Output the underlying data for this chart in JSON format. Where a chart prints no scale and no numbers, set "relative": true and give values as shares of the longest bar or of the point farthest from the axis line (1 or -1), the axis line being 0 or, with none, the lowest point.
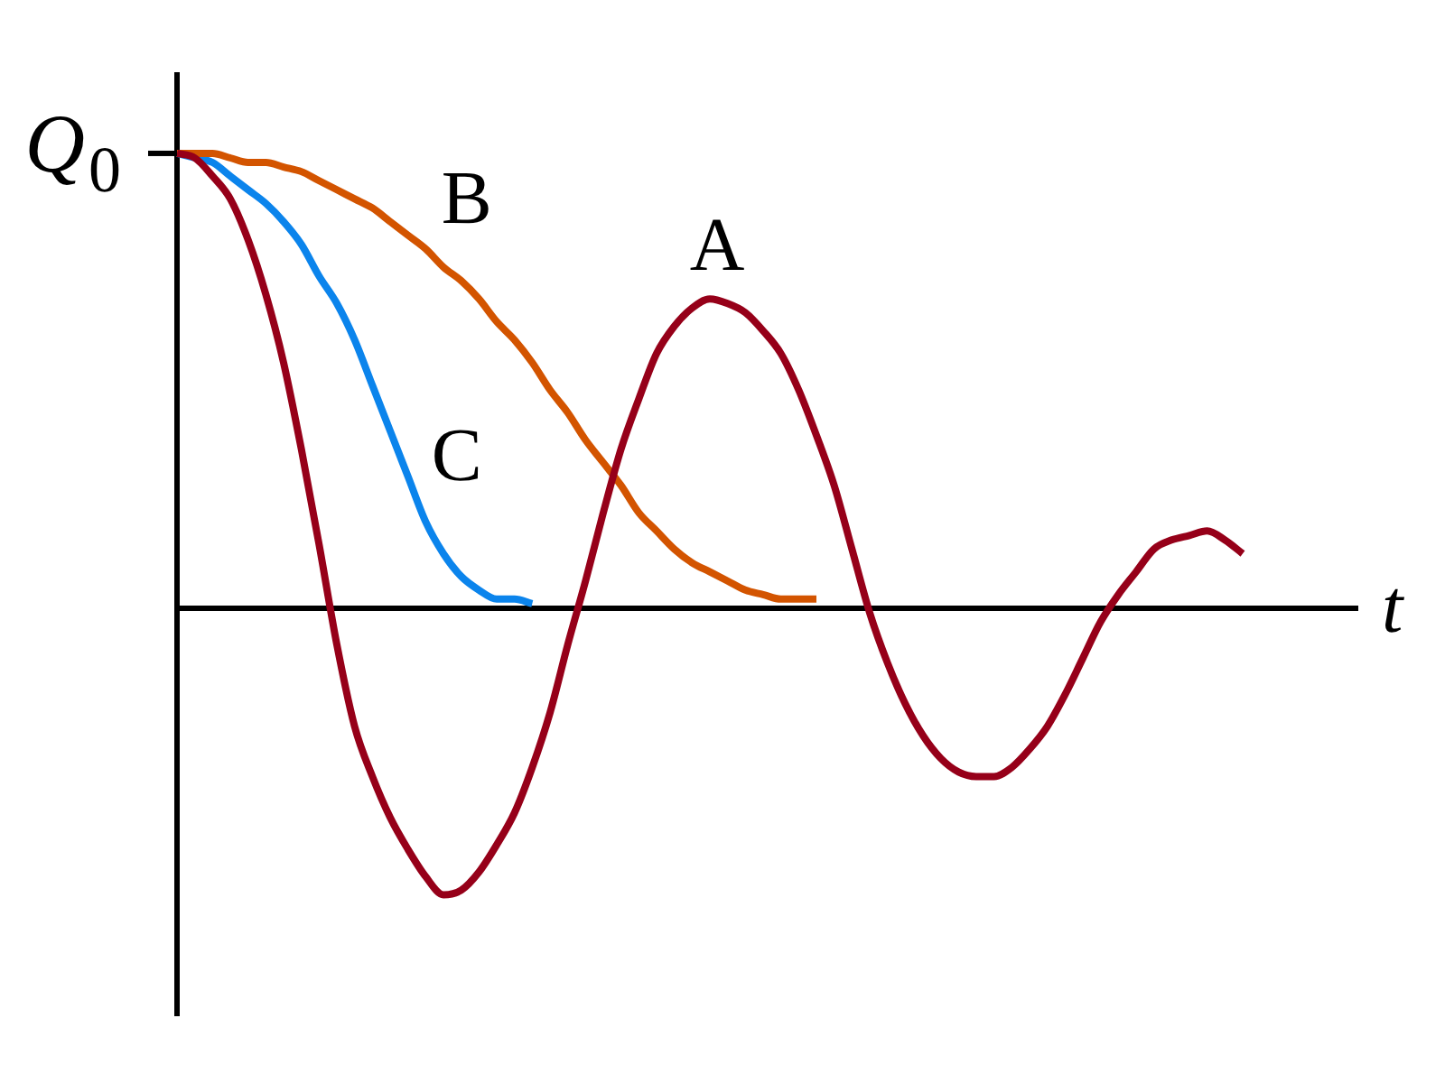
{
  "chart_data": {
    "type": "line",
    "xlabel": "t",
    "relative": true,
    "tick_labels": false,
    "annotations": [
      "Q$_{0}$"
    ],
    "categories": [
      null,
      null,
      null,
      null,
      null,
      null,
      null,
      null,
      null,
      null,
      null,
      null,
      null,
      null,
      null,
      null,
      null,
      null,
      null,
      null,
      null,
      null,
      null,
      null,
      null,
      null,
      null,
      null,
      null,
      null,
      null,
      null,
      null,
      null,
      null,
      null,
      null,
      null,
      null,
      null,
      null,
      null,
      null,
      null,
      null,
      null,
      null,
      null,
      null,
      null,
      null,
      null,
      null,
      null,
      null,
      null,
      null,
      null,
      null,
      null,
      null
    ],
    "series": [
      {
        "name": "A",
        "color": "#960019",
        "values": [
          1.0,
          0.99,
          0.95,
          0.9,
          0.81,
          0.69,
          0.54,
          0.35,
          0.14,
          -0.08,
          -0.26,
          -0.37,
          -0.46,
          -0.53,
          -0.59,
          -0.63,
          -0.62,
          -0.58,
          -0.52,
          -0.45,
          -0.35,
          -0.23,
          -0.08,
          0.06,
          0.21,
          0.35,
          0.46,
          0.56,
          0.62,
          0.66,
          0.68,
          0.67,
          0.65,
          0.61,
          0.56,
          0.48,
          0.38,
          0.27,
          0.13,
          -0.01,
          -0.12,
          -0.21,
          -0.28,
          -0.33,
          -0.36,
          -0.37,
          -0.37,
          -0.35,
          -0.31,
          -0.26,
          -0.19,
          -0.11,
          -0.03,
          0.03,
          0.08,
          0.13,
          0.15,
          0.16,
          0.17,
          0.15,
          0.12
        ]
      },
      {
        "name": "B",
        "color": "#d35400",
        "values": [
          1.0,
          1.0,
          1.0,
          0.99,
          0.98,
          0.98,
          0.97,
          0.96,
          0.94,
          0.92,
          0.9,
          0.88,
          0.85,
          0.82,
          0.79,
          0.75,
          0.72,
          0.68,
          0.63,
          0.59,
          0.54,
          0.48,
          0.43,
          0.37,
          0.32,
          0.27,
          0.21,
          0.17,
          0.13,
          0.1,
          0.08,
          0.06,
          0.04,
          0.03,
          0.02,
          0.02,
          0.02,
          null,
          null,
          null,
          null,
          null,
          null,
          null,
          null,
          null,
          null,
          null,
          null,
          null,
          null,
          null,
          null,
          null,
          null,
          null,
          null,
          null,
          null,
          null,
          null
        ]
      },
      {
        "name": "C",
        "color": "#0b84ec",
        "values": [
          1.0,
          0.99,
          0.98,
          0.95,
          0.92,
          0.89,
          0.85,
          0.8,
          0.73,
          0.67,
          0.59,
          0.49,
          0.39,
          0.29,
          0.19,
          0.12,
          0.07,
          0.04,
          0.02,
          0.02,
          0.01,
          null,
          null,
          null,
          null,
          null,
          null,
          null,
          null,
          null,
          null,
          null,
          null,
          null,
          null,
          null,
          null,
          null,
          null,
          null,
          null,
          null,
          null,
          null,
          null,
          null,
          null,
          null,
          null,
          null,
          null,
          null,
          null,
          null,
          null,
          null,
          null,
          null,
          null,
          null,
          null
        ]
      }
    ]
  }
}
